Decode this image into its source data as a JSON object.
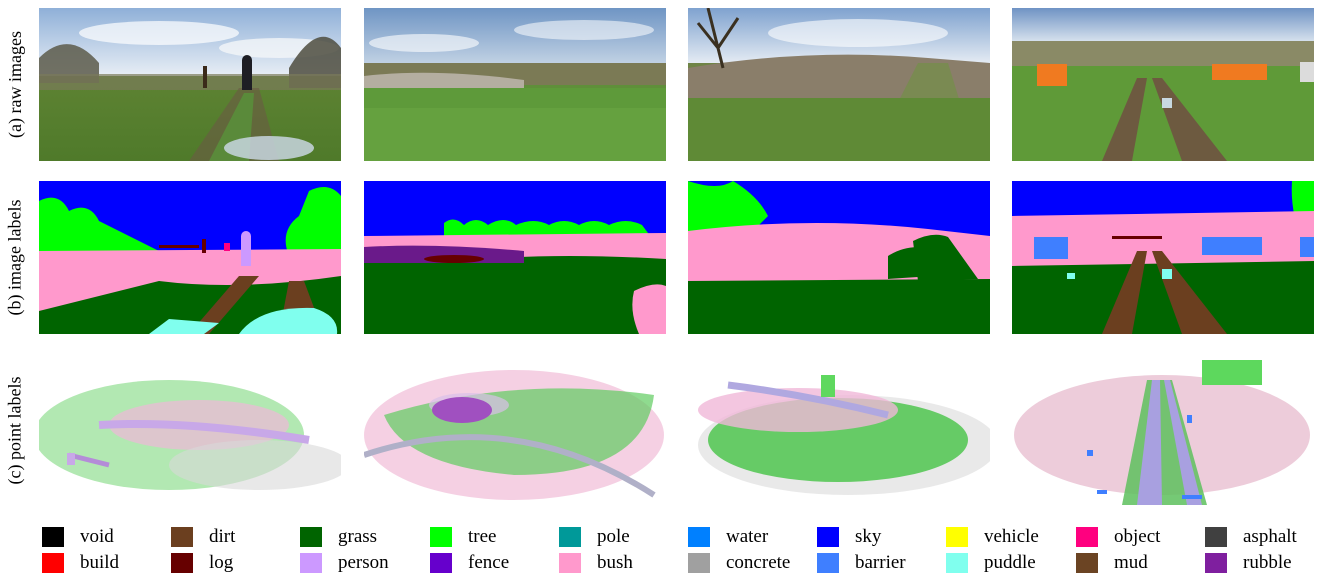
{
  "row_labels": [
    "(a) raw images",
    "(b) image labels",
    "(c) point labels"
  ],
  "legend": [
    {
      "label": "void",
      "color": "#000000"
    },
    {
      "label": "dirt",
      "color": "#6b3f1f"
    },
    {
      "label": "grass",
      "color": "#006400"
    },
    {
      "label": "tree",
      "color": "#00ff00"
    },
    {
      "label": "pole",
      "color": "#009999"
    },
    {
      "label": "water",
      "color": "#0080ff"
    },
    {
      "label": "sky",
      "color": "#0000ff"
    },
    {
      "label": "vehicle",
      "color": "#ffff00"
    },
    {
      "label": "object",
      "color": "#ff007f"
    },
    {
      "label": "asphalt",
      "color": "#404040"
    },
    {
      "label": "build",
      "color": "#ff0000"
    },
    {
      "label": "log",
      "color": "#660000"
    },
    {
      "label": "person",
      "color": "#cc99ff"
    },
    {
      "label": "fence",
      "color": "#6600cc"
    },
    {
      "label": "bush",
      "color": "#ff99cc"
    },
    {
      "label": "concrete",
      "color": "#a0a0a0"
    },
    {
      "label": "barrier",
      "color": "#3f7fff"
    },
    {
      "label": "puddle",
      "color": "#80ffee"
    },
    {
      "label": "mud",
      "color": "#6b4423"
    },
    {
      "label": "rubble",
      "color": "#7f1f9f"
    }
  ]
}
